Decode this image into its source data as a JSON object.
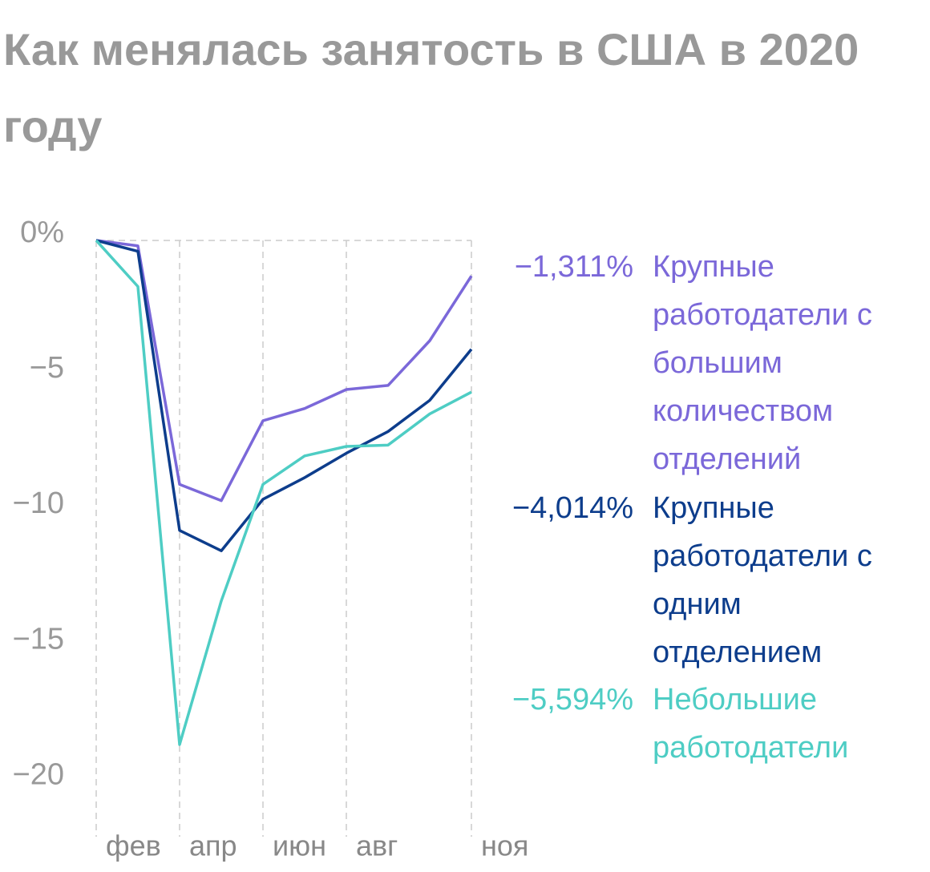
{
  "chart_data": {
    "type": "line",
    "title": "Как менялась занятость в США в 2020 году",
    "categories": [
      "фев",
      null,
      "апр",
      null,
      "июн",
      null,
      "авг",
      null,
      null,
      "ноя"
    ],
    "ylim": [
      -22,
      0
    ],
    "yticks": [
      {
        "value": 0,
        "label": "0%"
      },
      {
        "value": -5,
        "label": "−5"
      },
      {
        "value": -10,
        "label": "−10"
      },
      {
        "value": -15,
        "label": "−15"
      },
      {
        "value": -20,
        "label": "−20"
      }
    ],
    "series": [
      {
        "name": "Крупные работодатели с большим количеством отделений",
        "color": "#7b68d9",
        "values": [
          0,
          -0.2,
          -9.0,
          -9.6,
          -6.65,
          -6.2,
          -5.5,
          -5.35,
          -3.7,
          -1.311
        ],
        "value_labels": [
          null,
          null,
          null,
          null,
          null,
          null,
          null,
          null,
          null,
          "−1,311%"
        ]
      },
      {
        "name": "Крупные работодатели с одним отделением",
        "color": "#0d3d8c",
        "values": [
          0,
          -0.4,
          -10.7,
          -11.45,
          -9.55,
          -8.75,
          -7.85,
          -7.05,
          -5.9,
          -4.014
        ],
        "value_labels": [
          null,
          null,
          null,
          null,
          null,
          null,
          null,
          null,
          null,
          "−4,014%"
        ]
      },
      {
        "name": "Небольшие работодатели",
        "color": "#4ecdc4",
        "values": [
          0,
          -1.7,
          -18.6,
          -13.3,
          -9.0,
          -7.95,
          -7.6,
          -7.55,
          -6.4,
          -5.594
        ],
        "value_labels": [
          null,
          null,
          null,
          null,
          null,
          null,
          null,
          null,
          null,
          "−5,594%"
        ]
      }
    ]
  }
}
